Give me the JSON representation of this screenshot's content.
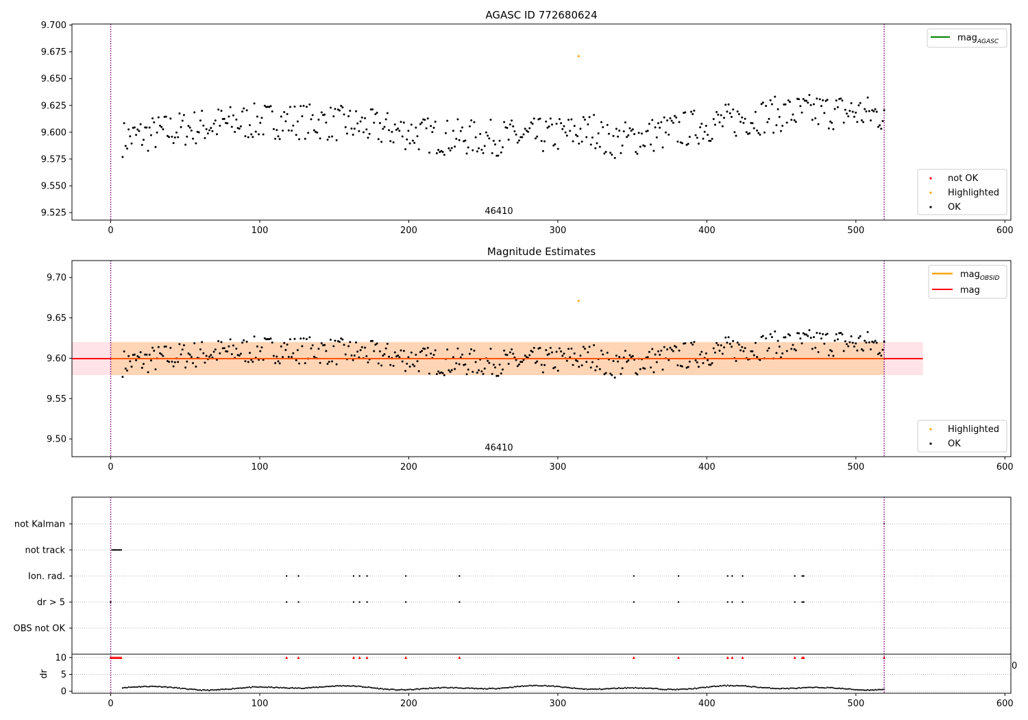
{
  "chart_data": [
    {
      "type": "scatter",
      "title": "AGASC ID 772680624",
      "xlim": [
        -26,
        604
      ],
      "ylim": [
        9.518,
        9.701
      ],
      "xticks": [
        0,
        100,
        200,
        300,
        400,
        500,
        600
      ],
      "yticks": [
        9.525,
        9.55,
        9.575,
        9.6,
        9.625,
        9.65,
        9.675,
        9.7
      ],
      "ytick_labels": [
        "9.525",
        "9.550",
        "9.575",
        "9.600",
        "9.625",
        "9.650",
        "9.675",
        "9.700"
      ],
      "annotation": "46410",
      "vlines": [
        0,
        519
      ],
      "vline_color": "#800080",
      "legend_lines": [
        {
          "label": "mag",
          "subscript": "AGASC",
          "color": "#008000"
        }
      ],
      "legend_points": [
        {
          "label": "not OK",
          "color": "#ff0000"
        },
        {
          "label": "Highlighted",
          "color": "#ffa500"
        },
        {
          "label": "OK",
          "color": "#000000"
        }
      ],
      "highlighted": [
        [
          314,
          9.671
        ]
      ],
      "ok_series": {
        "x_start": 8,
        "x_end": 519,
        "count": 510
      }
    },
    {
      "type": "scatter",
      "title": "Magnitude Estimates",
      "xlim": [
        -26,
        604
      ],
      "ylim": [
        9.478,
        9.721
      ],
      "xticks": [
        0,
        100,
        200,
        300,
        400,
        500,
        600
      ],
      "yticks": [
        9.5,
        9.55,
        9.6,
        9.65,
        9.7
      ],
      "ytick_labels": [
        "9.50",
        "9.55",
        "9.60",
        "9.65",
        "9.70"
      ],
      "annotation": "46410",
      "vlines": [
        0,
        519
      ],
      "mag_line": 9.5995,
      "mag_band": [
        9.579,
        9.62
      ],
      "obsid_band": [
        9.579,
        9.62
      ],
      "legend_lines": [
        {
          "label": "mag",
          "subscript": "OBSID",
          "color": "#ffa500"
        },
        {
          "label": "mag",
          "subscript": "",
          "color": "#ff0000"
        }
      ],
      "legend_points": [
        {
          "label": "Highlighted",
          "color": "#ffa500"
        },
        {
          "label": "OK",
          "color": "#000000"
        }
      ],
      "highlighted": [
        [
          314,
          9.671
        ]
      ]
    },
    {
      "type": "scatter",
      "title": "",
      "xlim": [
        -26,
        604
      ],
      "xticks": [
        0,
        100,
        200,
        300,
        400,
        500,
        600
      ],
      "vlines": [
        0,
        519
      ],
      "flag_categories": [
        "not Kalman",
        "not track",
        "Ion. rad.",
        "dr > 5",
        "OBS not OK"
      ],
      "flags": {
        "not Kalman": [
          519
        ],
        "not track": [
          1,
          2,
          3,
          4,
          5,
          6,
          7
        ],
        "Ion. rad.": [
          118,
          126,
          163,
          167,
          172,
          198,
          234,
          351,
          381,
          414,
          417,
          424,
          459,
          464,
          465
        ],
        "dr > 5": [
          0,
          118,
          126,
          163,
          167,
          172,
          198,
          234,
          351,
          381,
          414,
          417,
          424,
          459,
          464,
          465
        ],
        "OBS not OK": []
      },
      "dr_ylabel": "dr",
      "dr_ylim": [
        -0.6,
        11
      ],
      "dr_yticks": [
        0,
        5,
        10
      ],
      "dr_clipped_marker_value": 10,
      "dr_clipped_x": [
        0,
        1,
        2,
        3,
        4,
        5,
        6,
        7,
        118,
        126,
        163,
        167,
        172,
        198,
        234,
        351,
        381,
        414,
        417,
        424,
        459,
        464,
        465,
        519
      ],
      "edge_tick_label": "0"
    }
  ]
}
